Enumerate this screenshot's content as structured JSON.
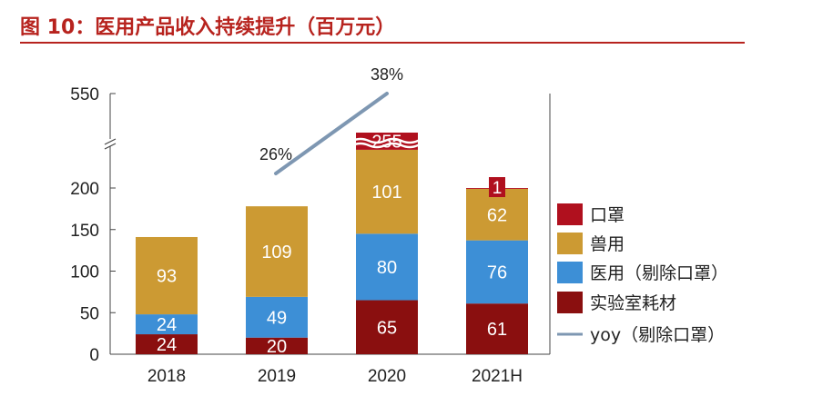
{
  "figure": {
    "title": "图 10：医用产品收入持续提升（百万元）"
  },
  "colors": {
    "title": "#b7231e",
    "rule": "#b7231e",
    "mask": "#b0101e",
    "animal": "#cc9a33",
    "medical": "#3d8fd6",
    "consumables": "#8a0f0f",
    "yoy_line": "#7e97b2",
    "axis": "#444444"
  },
  "chart_data": {
    "type": "bar",
    "stacked": true,
    "title": "医用产品收入持续提升（百万元）",
    "categories": [
      "2018",
      "2019",
      "2020",
      "2021H"
    ],
    "y_ticks": [
      0,
      50,
      100,
      150,
      200,
      550
    ],
    "y_axis_break": true,
    "series": [
      {
        "name": "实验室耗材",
        "key": "consumables",
        "values": [
          24,
          20,
          65,
          61
        ]
      },
      {
        "name": "医用（剔除口罩）",
        "key": "medical",
        "values": [
          24,
          49,
          80,
          76
        ]
      },
      {
        "name": "兽用",
        "key": "animal",
        "values": [
          93,
          109,
          101,
          62
        ]
      },
      {
        "name": "口罩",
        "key": "mask",
        "values": [
          null,
          null,
          255,
          1
        ]
      }
    ],
    "yoy": {
      "name": "yoy（剔除口罩）",
      "labels": [
        "26%",
        "38%"
      ]
    },
    "legend": {
      "position": "right",
      "items": [
        "口罩",
        "兽用",
        "医用（剔除口罩）",
        "实验室耗材",
        "yoy（剔除口罩）"
      ]
    }
  }
}
